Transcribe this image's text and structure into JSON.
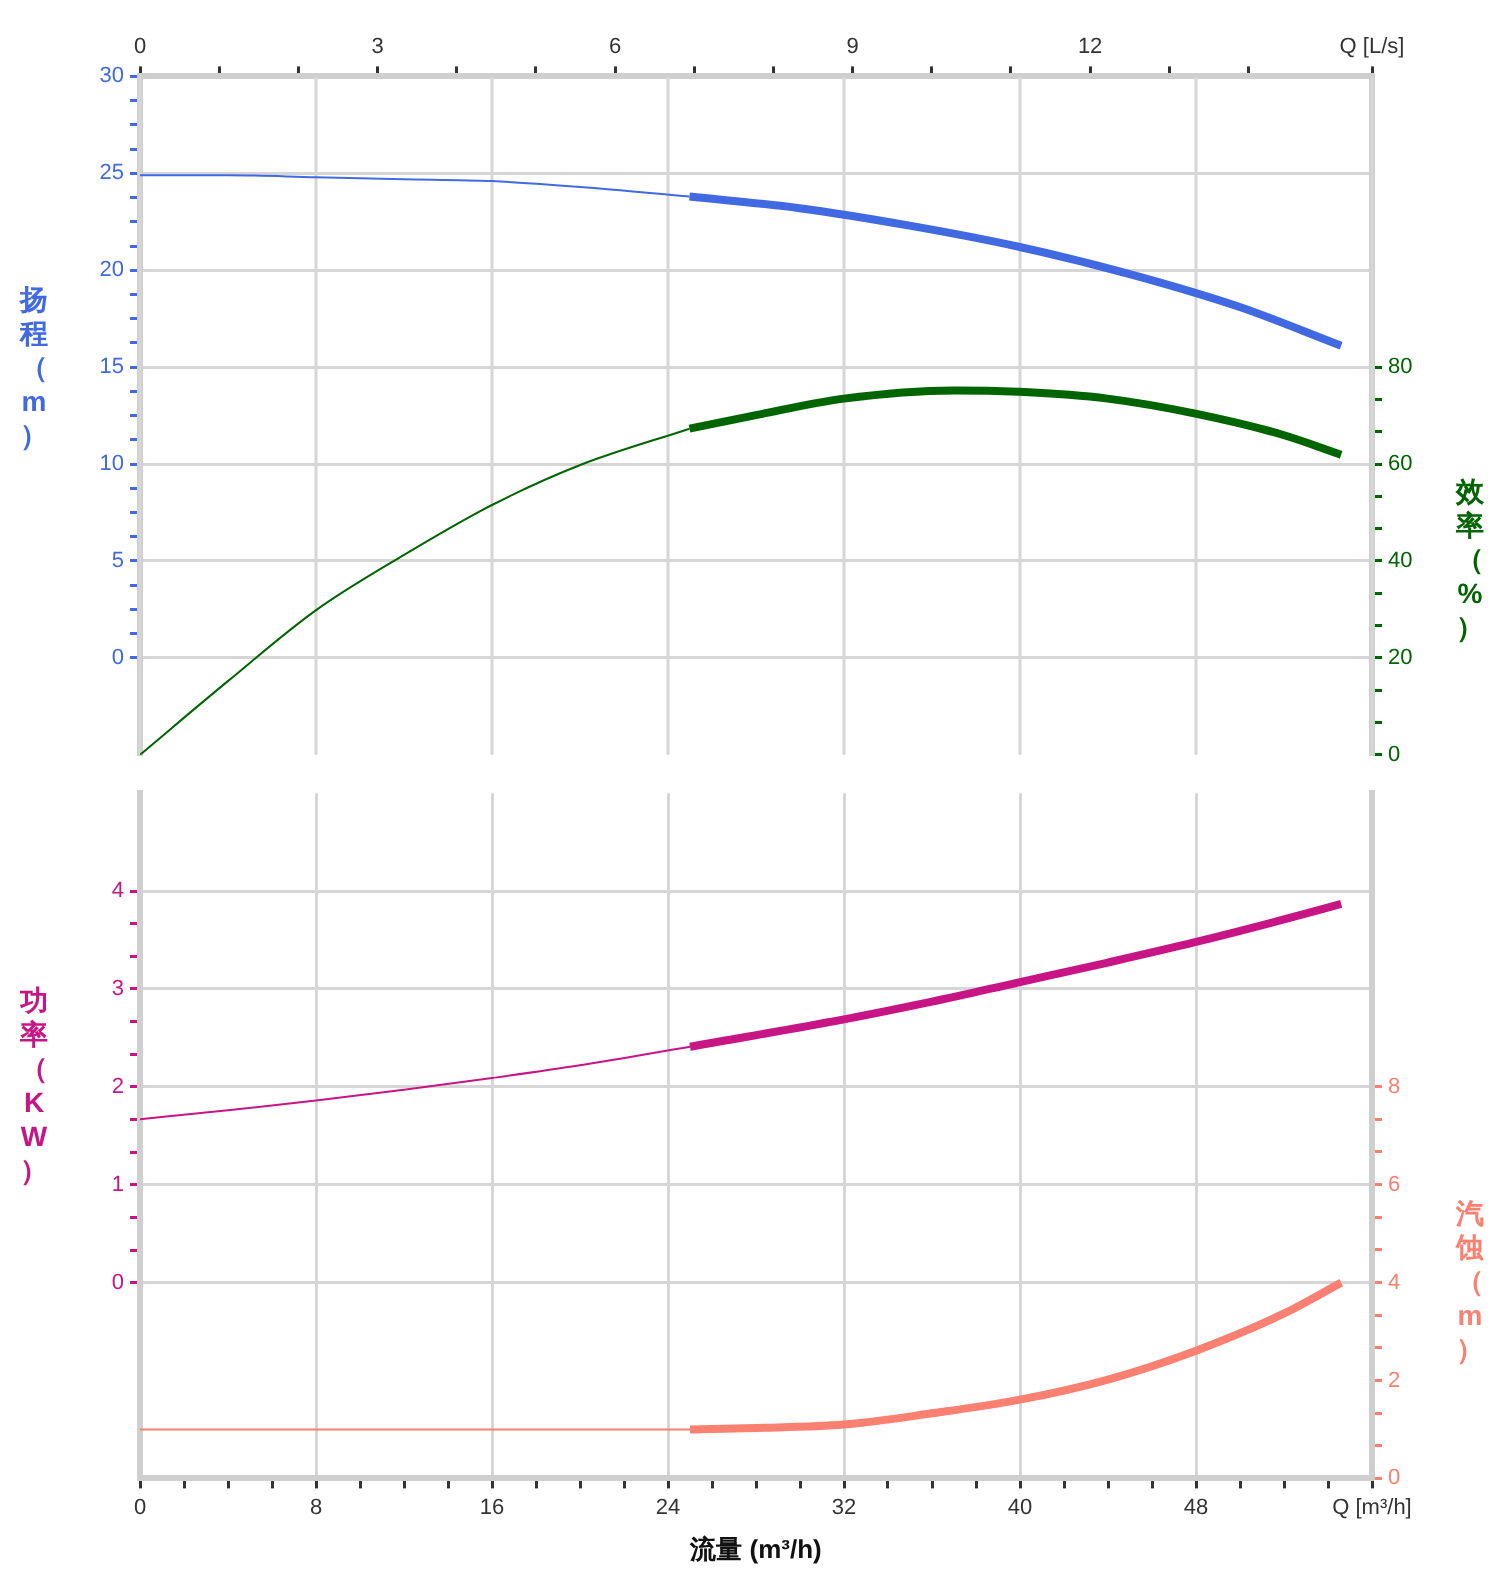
{
  "chart_data": [
    {
      "type": "line",
      "ylabel": "扬程（m）",
      "y2label": "效率（%）",
      "xlim": [
        0,
        15.56
      ],
      "xticks": [
        0,
        {
          "value": 1,
          "label": null
        },
        {
          "value": 2,
          "label": null
        },
        3,
        {
          "value": 4,
          "label": null
        },
        {
          "value": 5,
          "label": null
        },
        6,
        {
          "value": 7,
          "label": null
        },
        {
          "value": 8,
          "label": null
        },
        9,
        {
          "value": 10,
          "label": null
        },
        {
          "value": 11,
          "label": null
        },
        12,
        {
          "value": 13,
          "label": null
        },
        {
          "value": 14,
          "label": null
        },
        {
          "value": 15.56,
          "label": "Q [L/s]"
        }
      ],
      "ylim": [
        -5,
        30
      ],
      "yticks": [
        0,
        {
          "value": 1.25,
          "label": null
        },
        {
          "value": 2.5,
          "label": null
        },
        {
          "value": 3.75,
          "label": null
        },
        5,
        {
          "value": 6.25,
          "label": null
        },
        {
          "value": 7.5,
          "label": null
        },
        {
          "value": 8.75,
          "label": null
        },
        10,
        {
          "value": 11.25,
          "label": null
        },
        {
          "value": 12.5,
          "label": null
        },
        {
          "value": 13.75,
          "label": null
        },
        15,
        {
          "value": 16.25,
          "label": null
        },
        {
          "value": 17.5,
          "label": null
        },
        {
          "value": 18.75,
          "label": null
        },
        20,
        {
          "value": 21.25,
          "label": null
        },
        {
          "value": 22.5,
          "label": null
        },
        {
          "value": 23.75,
          "label": null
        },
        25,
        {
          "value": 26.25,
          "label": null
        },
        {
          "value": 27.5,
          "label": null
        },
        {
          "value": 28.75,
          "label": null
        },
        30
      ],
      "y2lim": [
        0,
        140
      ],
      "y2ticks": [
        0,
        {
          "value": 6.67,
          "label": null
        },
        {
          "value": 13.33,
          "label": null
        },
        20,
        {
          "value": 26.67,
          "label": null
        },
        {
          "value": 33.33,
          "label": null
        },
        40,
        {
          "value": 46.67,
          "label": null
        },
        {
          "value": 53.33,
          "label": null
        },
        60,
        {
          "value": 66.67,
          "label": null
        },
        {
          "value": 73.33,
          "label": null
        },
        80
      ],
      "grid": true,
      "legend": false,
      "series": [
        {
          "color": "#4169e1",
          "x": [
            0,
            1.11,
            2.22,
            3.33,
            4.44,
            5.56,
            6.94
          ],
          "values": [
            24.9,
            24.9,
            24.8,
            24.7,
            24.6,
            24.3,
            23.8
          ]
        },
        {
          "color": "#4169e1",
          "x": [
            6.94,
            8.33,
            9.72,
            11.11,
            12.5,
            13.89,
            15.17
          ],
          "values": [
            23.8,
            23.2,
            22.3,
            21.2,
            19.8,
            18.1,
            16.1
          ]
        },
        {
          "color": "#006400",
          "axis": "y2",
          "x": [
            0,
            1.11,
            2.22,
            3.33,
            4.44,
            5.56,
            6.94
          ],
          "values": [
            0,
            15.2,
            29.8,
            41.2,
            51.5,
            59.8,
            67.3
          ]
        },
        {
          "color": "#006400",
          "axis": "y2",
          "x": [
            6.94,
            7.78,
            8.89,
            10.28,
            11.11,
            12.22,
            13.33,
            14.44,
            15.17
          ],
          "values": [
            67.3,
            70.1,
            73.5,
            75.2,
            74.9,
            73.5,
            70.4,
            66,
            61.9
          ]
        }
      ]
    },
    {
      "type": "line",
      "xlabel": "流量 (m³/h)",
      "ylabel": "功率（KW）",
      "y2label": "汽蚀（m）",
      "xlim": [
        0,
        56
      ],
      "xticks": [
        0,
        {
          "value": 2,
          "label": null
        },
        {
          "value": 4,
          "label": null
        },
        {
          "value": 6,
          "label": null
        },
        8,
        {
          "value": 10,
          "label": null
        },
        {
          "value": 12,
          "label": null
        },
        {
          "value": 14,
          "label": null
        },
        16,
        {
          "value": 18,
          "label": null
        },
        {
          "value": 20,
          "label": null
        },
        {
          "value": 22,
          "label": null
        },
        24,
        {
          "value": 26,
          "label": null
        },
        {
          "value": 28,
          "label": null
        },
        {
          "value": 30,
          "label": null
        },
        32,
        {
          "value": 34,
          "label": null
        },
        {
          "value": 36,
          "label": null
        },
        {
          "value": 38,
          "label": null
        },
        40,
        {
          "value": 42,
          "label": null
        },
        {
          "value": 44,
          "label": null
        },
        {
          "value": 46,
          "label": null
        },
        48,
        {
          "value": 50,
          "label": null
        },
        {
          "value": 52,
          "label": null
        },
        {
          "value": 54,
          "label": null
        },
        {
          "value": 56,
          "label": "Q [m³/h]"
        }
      ],
      "ylim": [
        -2,
        5
      ],
      "yticks": [
        0,
        {
          "value": 0.33,
          "label": null
        },
        {
          "value": 0.67,
          "label": null
        },
        1,
        {
          "value": 1.33,
          "label": null
        },
        {
          "value": 1.67,
          "label": null
        },
        2,
        {
          "value": 2.33,
          "label": null
        },
        {
          "value": 2.67,
          "label": null
        },
        3,
        {
          "value": 3.33,
          "label": null
        },
        {
          "value": 3.67,
          "label": null
        },
        4
      ],
      "y2lim": [
        0,
        14
      ],
      "y2ticks": [
        0,
        {
          "value": 0.67,
          "label": null
        },
        {
          "value": 1.33,
          "label": null
        },
        2,
        {
          "value": 2.67,
          "label": null
        },
        {
          "value": 3.33,
          "label": null
        },
        4,
        {
          "value": 4.67,
          "label": null
        },
        {
          "value": 5.33,
          "label": null
        },
        6,
        {
          "value": 6.67,
          "label": null
        },
        {
          "value": 7.33,
          "label": null
        },
        8
      ],
      "grid": true,
      "legend": false,
      "series": [
        {
          "color": "#c71585",
          "x": [
            0,
            4,
            8,
            12,
            16,
            20,
            25
          ],
          "values": [
            1.67,
            1.76,
            1.86,
            1.97,
            2.09,
            2.22,
            2.41
          ]
        },
        {
          "color": "#c71585",
          "x": [
            25,
            32,
            36,
            40,
            44,
            48,
            52,
            54.6
          ],
          "values": [
            2.41,
            2.69,
            2.87,
            3.07,
            3.27,
            3.48,
            3.71,
            3.87
          ]
        },
        {
          "color": "#fa8072",
          "axis": "y2",
          "x": [
            0,
            25
          ],
          "values": [
            1.0,
            1.0
          ]
        },
        {
          "color": "#fa8072",
          "axis": "y2",
          "x": [
            25,
            28,
            32,
            36,
            40,
            44,
            48,
            52,
            54.6
          ],
          "values": [
            1.0,
            1.03,
            1.1,
            1.33,
            1.61,
            2.02,
            2.61,
            3.37,
            4.0
          ]
        }
      ]
    }
  ]
}
